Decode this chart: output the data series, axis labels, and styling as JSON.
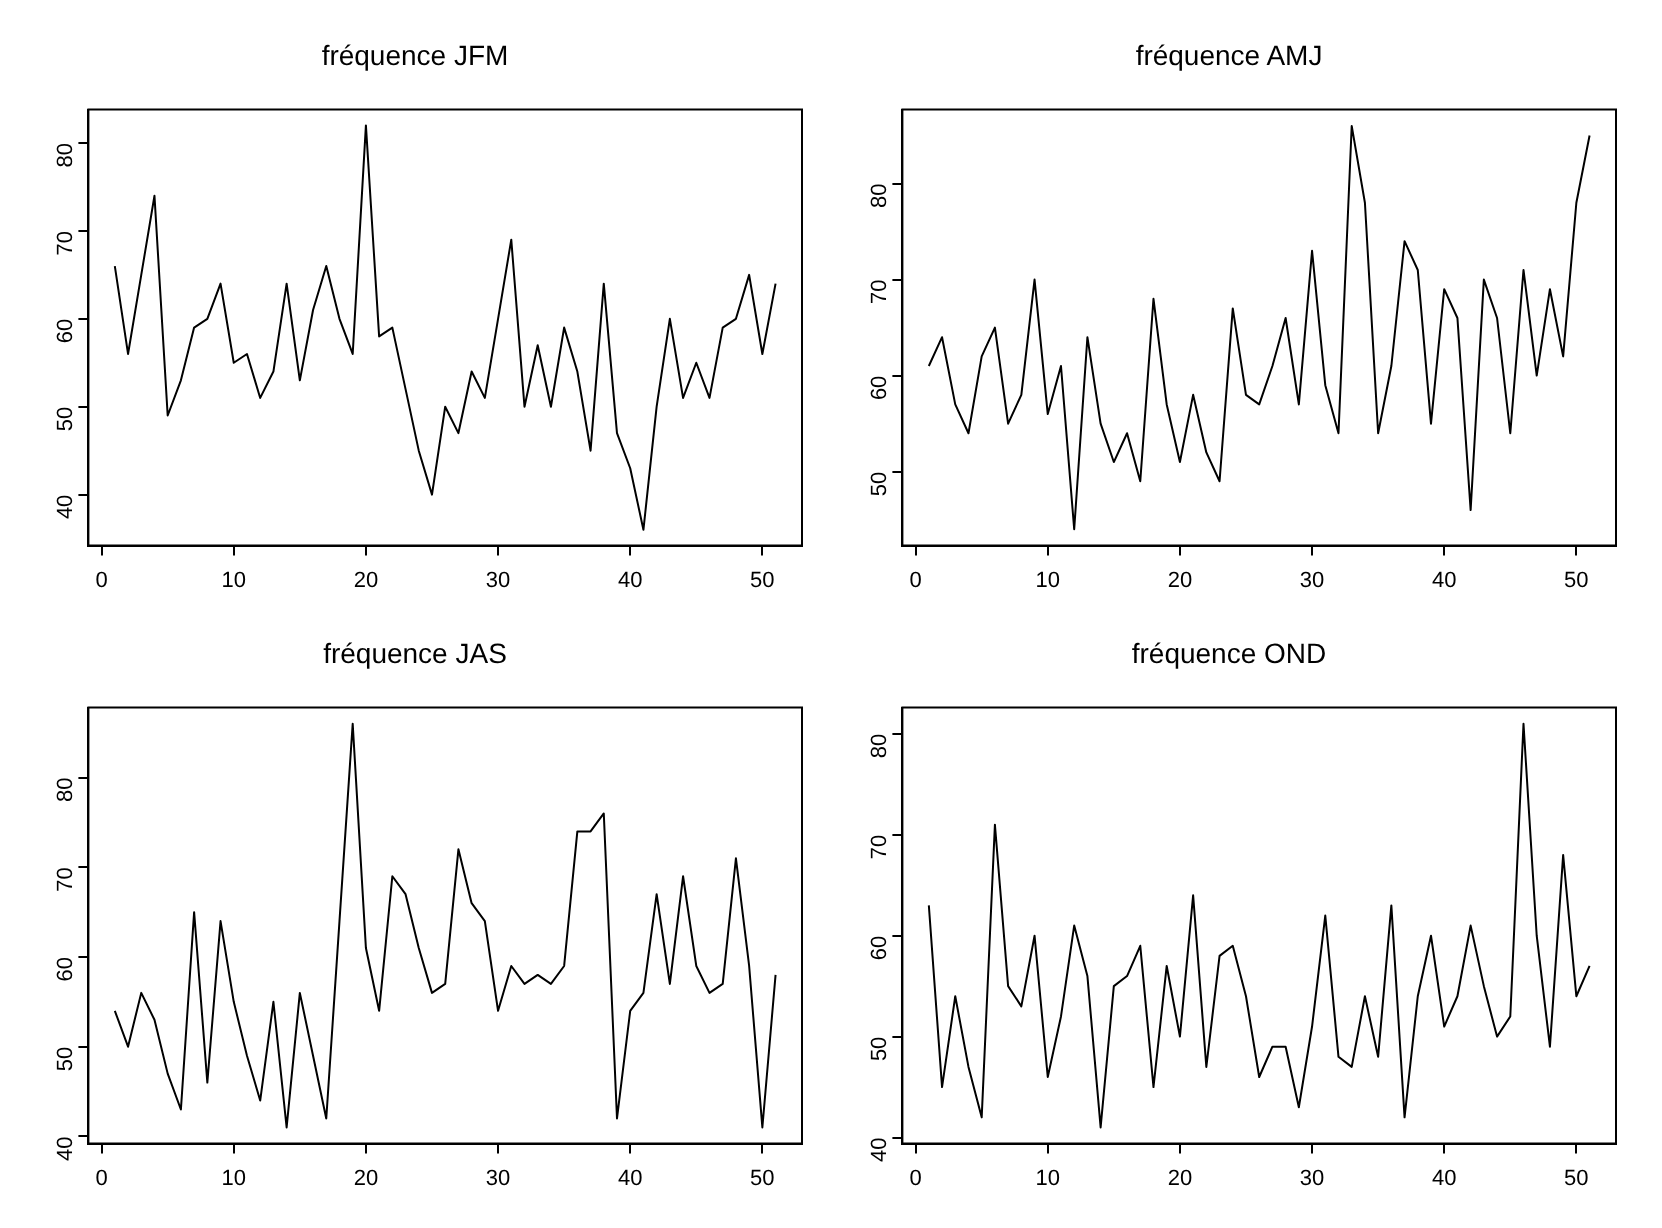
{
  "chart_data": [
    {
      "type": "line",
      "title": "fréquence JFM",
      "color": "#000000",
      "grid": false,
      "marker": "none",
      "line_style": "solid",
      "x": [
        1,
        2,
        3,
        4,
        5,
        6,
        7,
        8,
        9,
        10,
        11,
        12,
        13,
        14,
        15,
        16,
        17,
        18,
        19,
        20,
        21,
        22,
        23,
        24,
        25,
        26,
        27,
        28,
        29,
        30,
        31,
        32,
        33,
        34,
        35,
        36,
        37,
        38,
        39,
        40,
        41,
        42,
        43,
        44,
        45,
        46,
        47,
        48,
        49,
        50,
        51
      ],
      "values": [
        66,
        56,
        65,
        74,
        49,
        53,
        59,
        60,
        64,
        55,
        56,
        51,
        54,
        64,
        53,
        61,
        66,
        60,
        56,
        82,
        58,
        59,
        52,
        45,
        40,
        50,
        47,
        54,
        51,
        60,
        69,
        50,
        57,
        50,
        59,
        54,
        45,
        64,
        47,
        43,
        36,
        50,
        60,
        51,
        55,
        51,
        59,
        60,
        65,
        56,
        64
      ],
      "xlim": [
        -1,
        53
      ],
      "xticks": [
        0,
        10,
        20,
        30,
        40,
        50
      ],
      "ylim": [
        34.2,
        83.8
      ],
      "yticks": [
        40,
        50,
        60,
        70,
        80
      ]
    },
    {
      "type": "line",
      "title": "fréquence AMJ",
      "color": "#000000",
      "grid": false,
      "marker": "none",
      "line_style": "solid",
      "x": [
        1,
        2,
        3,
        4,
        5,
        6,
        7,
        8,
        9,
        10,
        11,
        12,
        13,
        14,
        15,
        16,
        17,
        18,
        19,
        20,
        21,
        22,
        23,
        24,
        25,
        26,
        27,
        28,
        29,
        30,
        31,
        32,
        33,
        34,
        35,
        36,
        37,
        38,
        39,
        40,
        41,
        42,
        43,
        44,
        45,
        46,
        47,
        48,
        49,
        50,
        51
      ],
      "values": [
        61,
        64,
        57,
        54,
        62,
        65,
        55,
        58,
        70,
        56,
        61,
        44,
        64,
        55,
        51,
        54,
        49,
        68,
        57,
        51,
        58,
        52,
        49,
        67,
        58,
        57,
        61,
        66,
        57,
        73,
        59,
        54,
        86,
        78,
        54,
        61,
        74,
        71,
        55,
        69,
        66,
        46,
        70,
        66,
        54,
        71,
        60,
        69,
        62,
        78,
        85
      ],
      "xlim": [
        -1,
        53
      ],
      "xticks": [
        0,
        10,
        20,
        30,
        40,
        50
      ],
      "ylim": [
        42.3,
        87.7
      ],
      "yticks": [
        50,
        60,
        70,
        80
      ]
    },
    {
      "type": "line",
      "title": "fréquence JAS",
      "color": "#000000",
      "grid": false,
      "marker": "none",
      "line_style": "solid",
      "x": [
        1,
        2,
        3,
        4,
        5,
        6,
        7,
        8,
        9,
        10,
        11,
        12,
        13,
        14,
        15,
        16,
        17,
        18,
        19,
        20,
        21,
        22,
        23,
        24,
        25,
        26,
        27,
        28,
        29,
        30,
        31,
        32,
        33,
        34,
        35,
        36,
        37,
        38,
        39,
        40,
        41,
        42,
        43,
        44,
        45,
        46,
        47,
        48,
        49,
        50,
        51
      ],
      "values": [
        54,
        50,
        56,
        53,
        47,
        43,
        65,
        46,
        64,
        55,
        49,
        44,
        55,
        41,
        56,
        49,
        42,
        64,
        86,
        61,
        54,
        69,
        67,
        61,
        56,
        57,
        72,
        66,
        64,
        54,
        59,
        57,
        58,
        57,
        59,
        74,
        74,
        76,
        42,
        54,
        56,
        67,
        57,
        69,
        59,
        56,
        57,
        71,
        59,
        41,
        58
      ],
      "xlim": [
        -1,
        53
      ],
      "xticks": [
        0,
        10,
        20,
        30,
        40,
        50
      ],
      "ylim": [
        39.2,
        87.8
      ],
      "yticks": [
        40,
        50,
        60,
        70,
        80
      ]
    },
    {
      "type": "line",
      "title": "fréquence OND",
      "color": "#000000",
      "grid": false,
      "marker": "none",
      "line_style": "solid",
      "x": [
        1,
        2,
        3,
        4,
        5,
        6,
        7,
        8,
        9,
        10,
        11,
        12,
        13,
        14,
        15,
        16,
        17,
        18,
        19,
        20,
        21,
        22,
        23,
        24,
        25,
        26,
        27,
        28,
        29,
        30,
        31,
        32,
        33,
        34,
        35,
        36,
        37,
        38,
        39,
        40,
        41,
        42,
        43,
        44,
        45,
        46,
        47,
        48,
        49,
        50,
        51
      ],
      "values": [
        63,
        45,
        54,
        47,
        42,
        71,
        55,
        53,
        60,
        46,
        52,
        61,
        56,
        41,
        55,
        56,
        59,
        45,
        57,
        50,
        64,
        47,
        58,
        59,
        54,
        46,
        49,
        49,
        43,
        51,
        62,
        48,
        47,
        54,
        48,
        63,
        42,
        54,
        60,
        51,
        54,
        61,
        55,
        50,
        52,
        81,
        60,
        49,
        68,
        54,
        57
      ],
      "xlim": [
        -1,
        53
      ],
      "xticks": [
        0,
        10,
        20,
        30,
        40,
        50
      ],
      "ylim": [
        39.4,
        82.6
      ],
      "yticks": [
        40,
        50,
        60,
        70,
        80
      ]
    }
  ]
}
